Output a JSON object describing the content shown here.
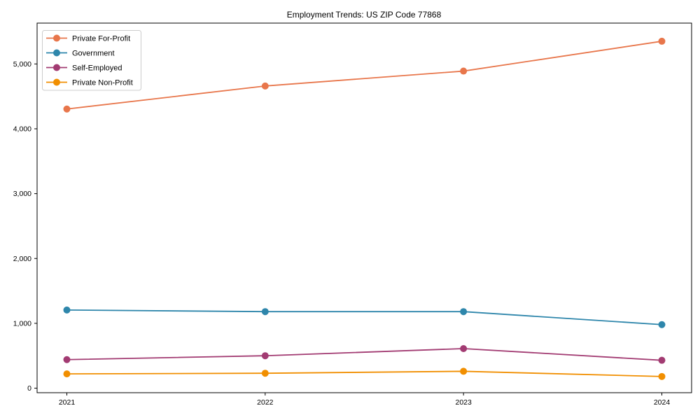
{
  "figure": {
    "background_color": "#ffffff",
    "axis_color": "#000000",
    "text_color": "#000000",
    "legend_border_color": "#cccccc",
    "legend_background_color": "#ffffff"
  },
  "chart_data": {
    "type": "line",
    "title": "Employment Trends: US ZIP Code 77868",
    "xlabel": "",
    "ylabel": "",
    "x": [
      2021,
      2022,
      2023,
      2024
    ],
    "xtick_labels": [
      "2021",
      "2022",
      "2023",
      "2024"
    ],
    "series": [
      {
        "name": "Private For-Profit",
        "color": "#E8764B",
        "values": [
          4305,
          4660,
          4890,
          5350
        ]
      },
      {
        "name": "Government",
        "color": "#2E86AB",
        "values": [
          1205,
          1180,
          1180,
          980
        ]
      },
      {
        "name": "Self-Employed",
        "color": "#A23B72",
        "values": [
          440,
          500,
          610,
          430
        ]
      },
      {
        "name": "Private Non-Profit",
        "color": "#F18F01",
        "values": [
          220,
          230,
          260,
          180
        ]
      }
    ],
    "yticks": [
      0,
      1000,
      2000,
      3000,
      4000,
      5000
    ],
    "ytick_labels": [
      "0",
      "1,000",
      "2,000",
      "3,000",
      "4,000",
      "5,000"
    ],
    "ylim": [
      -70,
      5630
    ],
    "xlim": [
      2020.85,
      2024.15
    ],
    "grid": false,
    "marker": "circle",
    "legend": {
      "position": "upper-left",
      "entries": [
        "Private For-Profit",
        "Government",
        "Self-Employed",
        "Private Non-Profit"
      ]
    }
  }
}
